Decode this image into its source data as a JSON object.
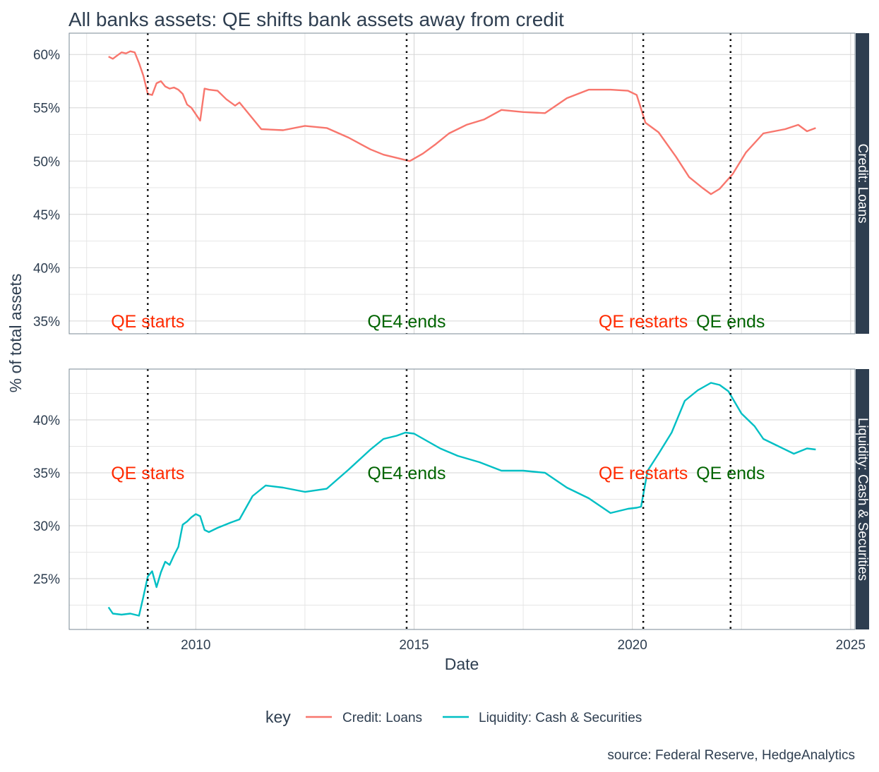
{
  "chart_data": {
    "type": "line",
    "title": "All banks assets: QE shifts bank assets away from credit",
    "xlabel": "Date",
    "ylabel": "% of total assets",
    "caption": "source: Federal Reserve, HedgeAnalytics",
    "legend_title": "key",
    "legend_position": "bottom",
    "x_ticks": [
      "2010",
      "2015",
      "2020",
      "2025"
    ],
    "xlim": [
      2007.1,
      2025.1
    ],
    "vlines": [
      2008.9,
      2014.83,
      2020.25,
      2022.25
    ],
    "colors": {
      "Credit: Loans": "#f8766d",
      "Liquidity: Cash & Securities": "#00bfc4",
      "strip": "#2e3e50"
    },
    "panels": [
      {
        "name": "Credit: Loans",
        "strip_label": "Credit: Loans",
        "ylim": [
          33.8,
          62.0
        ],
        "y_ticks": [
          "35%",
          "40%",
          "45%",
          "50%",
          "55%",
          "60%"
        ],
        "y_tick_values": [
          35,
          40,
          45,
          50,
          55,
          60
        ],
        "annotations": [
          {
            "text": "QE starts",
            "x": 2008.9,
            "y": 35,
            "color": "#ff2a00"
          },
          {
            "text": "QE4 ends",
            "x": 2014.83,
            "y": 35,
            "color": "#006400"
          },
          {
            "text": "QE restarts",
            "x": 2020.25,
            "y": 35,
            "color": "#ff2a00"
          },
          {
            "text": "QE ends",
            "x": 2022.25,
            "y": 35,
            "color": "#006400"
          }
        ],
        "series": {
          "name": "Credit: Loans",
          "x": [
            2008.0,
            2008.1,
            2008.2,
            2008.3,
            2008.4,
            2008.5,
            2008.6,
            2008.7,
            2008.8,
            2008.9,
            2009.0,
            2009.1,
            2009.2,
            2009.3,
            2009.4,
            2009.5,
            2009.6,
            2009.7,
            2009.8,
            2009.9,
            2010.0,
            2010.1,
            2010.2,
            2010.3,
            2010.5,
            2010.7,
            2010.9,
            2011.0,
            2011.2,
            2011.5,
            2012.0,
            2012.5,
            2013.0,
            2013.5,
            2014.0,
            2014.3,
            2014.6,
            2014.9,
            2015.2,
            2015.5,
            2015.8,
            2016.2,
            2016.6,
            2017.0,
            2017.5,
            2018.0,
            2018.5,
            2019.0,
            2019.5,
            2019.9,
            2020.1,
            2020.3,
            2020.6,
            2021.0,
            2021.3,
            2021.6,
            2021.8,
            2022.0,
            2022.3,
            2022.6,
            2023.0,
            2023.5,
            2023.8,
            2024.0,
            2024.2
          ],
          "values": [
            59.8,
            59.6,
            59.9,
            60.2,
            60.1,
            60.3,
            60.2,
            59.2,
            58.0,
            56.3,
            56.2,
            57.3,
            57.5,
            57.0,
            56.8,
            56.9,
            56.7,
            56.3,
            55.3,
            55.0,
            54.4,
            53.8,
            56.8,
            56.7,
            56.6,
            55.8,
            55.2,
            55.5,
            54.5,
            53.0,
            52.9,
            53.3,
            53.1,
            52.2,
            51.1,
            50.6,
            50.3,
            50.0,
            50.7,
            51.6,
            52.6,
            53.4,
            53.9,
            54.8,
            54.6,
            54.5,
            55.9,
            56.7,
            56.7,
            56.6,
            56.2,
            53.6,
            52.7,
            50.4,
            48.5,
            47.5,
            46.9,
            47.4,
            48.8,
            50.8,
            52.6,
            53.0,
            53.4,
            52.8,
            53.1
          ]
        }
      },
      {
        "name": "Liquidity: Cash & Securities",
        "strip_label": "Liquidity: Cash & Securities",
        "ylim": [
          20.2,
          44.8
        ],
        "y_ticks": [
          "25%",
          "30%",
          "35%",
          "40%"
        ],
        "y_tick_values": [
          25,
          30,
          35,
          40
        ],
        "annotations": [
          {
            "text": "QE starts",
            "x": 2008.9,
            "y": 35,
            "color": "#ff2a00"
          },
          {
            "text": "QE4 ends",
            "x": 2014.83,
            "y": 35,
            "color": "#006400"
          },
          {
            "text": "QE restarts",
            "x": 2020.25,
            "y": 35,
            "color": "#ff2a00"
          },
          {
            "text": "QE ends",
            "x": 2022.25,
            "y": 35,
            "color": "#006400"
          }
        ],
        "series": {
          "name": "Liquidity: Cash & Securities",
          "x": [
            2008.0,
            2008.1,
            2008.3,
            2008.5,
            2008.7,
            2008.8,
            2008.9,
            2009.0,
            2009.1,
            2009.2,
            2009.3,
            2009.4,
            2009.5,
            2009.6,
            2009.7,
            2009.8,
            2009.9,
            2010.0,
            2010.1,
            2010.2,
            2010.3,
            2010.5,
            2010.8,
            2011.0,
            2011.3,
            2011.6,
            2012.0,
            2012.5,
            2013.0,
            2013.5,
            2014.0,
            2014.3,
            2014.6,
            2014.8,
            2015.0,
            2015.3,
            2015.6,
            2016.0,
            2016.5,
            2017.0,
            2017.5,
            2018.0,
            2018.5,
            2019.0,
            2019.5,
            2019.9,
            2020.1,
            2020.2,
            2020.35,
            2020.6,
            2020.9,
            2021.2,
            2021.5,
            2021.8,
            2022.0,
            2022.2,
            2022.5,
            2022.8,
            2023.0,
            2023.3,
            2023.7,
            2024.0,
            2024.2
          ],
          "values": [
            22.3,
            21.7,
            21.6,
            21.7,
            21.5,
            23.3,
            25.2,
            25.7,
            24.2,
            25.6,
            26.6,
            26.3,
            27.2,
            28.0,
            30.1,
            30.4,
            30.8,
            31.1,
            30.9,
            29.6,
            29.4,
            29.8,
            30.3,
            30.6,
            32.8,
            33.8,
            33.6,
            33.2,
            33.5,
            35.3,
            37.2,
            38.2,
            38.5,
            38.8,
            38.7,
            38.0,
            37.3,
            36.6,
            36.0,
            35.2,
            35.2,
            35.0,
            33.6,
            32.6,
            31.2,
            31.6,
            31.7,
            31.8,
            35.2,
            36.8,
            38.8,
            41.8,
            42.8,
            43.5,
            43.3,
            42.7,
            40.6,
            39.4,
            38.2,
            37.6,
            36.8,
            37.3,
            37.2
          ]
        }
      }
    ]
  }
}
